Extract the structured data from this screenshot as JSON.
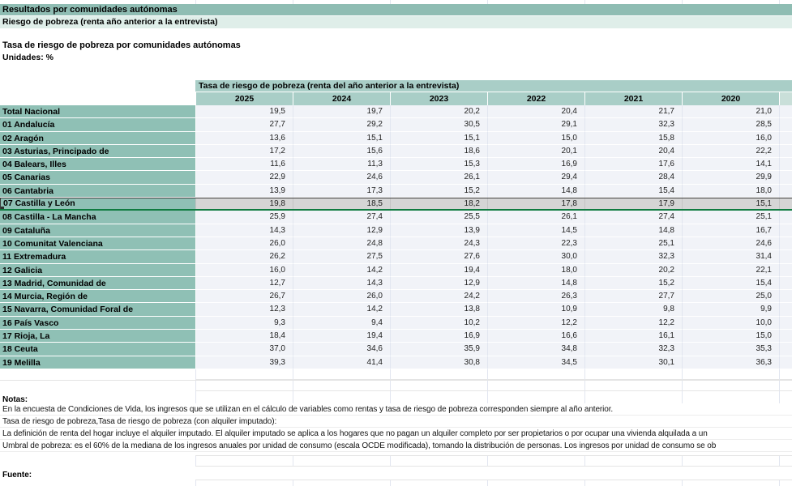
{
  "header": {
    "band1": "Resultados por comunidades autónomas",
    "band2": "Riesgo de pobreza  (renta año anterior a la entrevista)",
    "title": "Tasa de riesgo de pobreza por comunidades autónomas",
    "units": "Unidades: %"
  },
  "table": {
    "span_header": "Tasa de riesgo de pobreza (renta del año anterior a la entrevista)",
    "years": [
      "2025",
      "2024",
      "2023",
      "2022",
      "2021",
      "2020"
    ],
    "rows": [
      {
        "label": "Total Nacional",
        "values": [
          "19,5",
          "19,7",
          "20,2",
          "20,4",
          "21,7",
          "21,0"
        ],
        "selected": false
      },
      {
        "label": "01 Andalucía",
        "values": [
          "27,7",
          "29,2",
          "30,5",
          "29,1",
          "32,3",
          "28,5"
        ],
        "selected": false
      },
      {
        "label": "02 Aragón",
        "values": [
          "13,6",
          "15,1",
          "15,1",
          "15,0",
          "15,8",
          "16,0"
        ],
        "selected": false
      },
      {
        "label": "03 Asturias, Principado de",
        "values": [
          "17,2",
          "15,6",
          "18,6",
          "20,1",
          "20,4",
          "22,2"
        ],
        "selected": false
      },
      {
        "label": "04 Balears, Illes",
        "values": [
          "11,6",
          "11,3",
          "15,3",
          "16,9",
          "17,6",
          "14,1"
        ],
        "selected": false
      },
      {
        "label": "05 Canarias",
        "values": [
          "22,9",
          "24,6",
          "26,1",
          "29,4",
          "28,4",
          "29,9"
        ],
        "selected": false
      },
      {
        "label": "06 Cantabria",
        "values": [
          "13,9",
          "17,3",
          "15,2",
          "14,8",
          "15,4",
          "18,0"
        ],
        "selected": false
      },
      {
        "label": "07 Castilla y León",
        "values": [
          "19,8",
          "18,5",
          "18,2",
          "17,8",
          "17,9",
          "15,1"
        ],
        "selected": true
      },
      {
        "label": "08 Castilla - La Mancha",
        "values": [
          "25,9",
          "27,4",
          "25,5",
          "26,1",
          "27,4",
          "25,1"
        ],
        "selected": false
      },
      {
        "label": "09 Cataluña",
        "values": [
          "14,3",
          "12,9",
          "13,9",
          "14,5",
          "14,8",
          "16,7"
        ],
        "selected": false
      },
      {
        "label": "10 Comunitat Valenciana",
        "values": [
          "26,0",
          "24,8",
          "24,3",
          "22,3",
          "25,1",
          "24,6"
        ],
        "selected": false
      },
      {
        "label": "11 Extremadura",
        "values": [
          "26,2",
          "27,5",
          "27,6",
          "30,0",
          "32,3",
          "31,4"
        ],
        "selected": false
      },
      {
        "label": "12 Galicia",
        "values": [
          "16,0",
          "14,2",
          "19,4",
          "18,0",
          "20,2",
          "22,1"
        ],
        "selected": false
      },
      {
        "label": "13 Madrid, Comunidad de",
        "values": [
          "12,7",
          "14,3",
          "12,9",
          "14,8",
          "15,2",
          "15,4"
        ],
        "selected": false
      },
      {
        "label": "14 Murcia, Región de",
        "values": [
          "26,7",
          "26,0",
          "24,2",
          "26,3",
          "27,7",
          "25,0"
        ],
        "selected": false
      },
      {
        "label": "15 Navarra, Comunidad Foral de",
        "values": [
          "12,3",
          "14,2",
          "13,8",
          "10,9",
          "9,8",
          "9,9"
        ],
        "selected": false
      },
      {
        "label": "16 País Vasco",
        "values": [
          "9,3",
          "9,4",
          "10,2",
          "12,2",
          "12,2",
          "10,0"
        ],
        "selected": false
      },
      {
        "label": "17 Rioja, La",
        "values": [
          "18,4",
          "19,4",
          "16,9",
          "16,6",
          "16,1",
          "15,0"
        ],
        "selected": false
      },
      {
        "label": "18 Ceuta",
        "values": [
          "37,0",
          "34,6",
          "35,9",
          "34,8",
          "32,3",
          "35,3"
        ],
        "selected": false
      },
      {
        "label": "19 Melilla",
        "values": [
          "39,3",
          "41,4",
          "30,8",
          "34,5",
          "30,1",
          "36,3"
        ],
        "selected": false
      }
    ]
  },
  "notes": {
    "heading": "Notas:",
    "lines": [
      "En la encuesta de Condiciones de Vida, los ingresos que se utilizan en el cálculo de variables como rentas y  tasa de riesgo de pobreza corresponden siempre al año anterior.",
      "Tasa de riesgo de pobreza,Tasa de riesgo de pobreza (con alquiler imputado):",
      "La definición de renta del hogar incluye el alquiler imputado. El alquiler imputado se aplica a los hogares que no pagan un alquiler completo por ser propietarios o por ocupar una vivienda alquilada a un",
      "Umbral de pobreza: es el 60% de la mediana de los ingresos anuales por unidad de consumo (escala OCDE modificada), tomando la distribución de personas. Los ingresos por unidad de consumo se ob"
    ]
  },
  "source_heading": "Fuente:",
  "colors": {
    "band1_bg": "#8FBDB3",
    "band2_bg": "#DFEEE9",
    "table_header_bg": "#A9CEC7",
    "header_sliver_bg": "#C9DFD9",
    "row_label_bg": "#8FC0B5",
    "data_cell_bg": "#F1F3F8",
    "selected_row_bg": "#D5D5D5",
    "selection_green": "#0F7B40",
    "grid_line": "#E2E6F0"
  }
}
